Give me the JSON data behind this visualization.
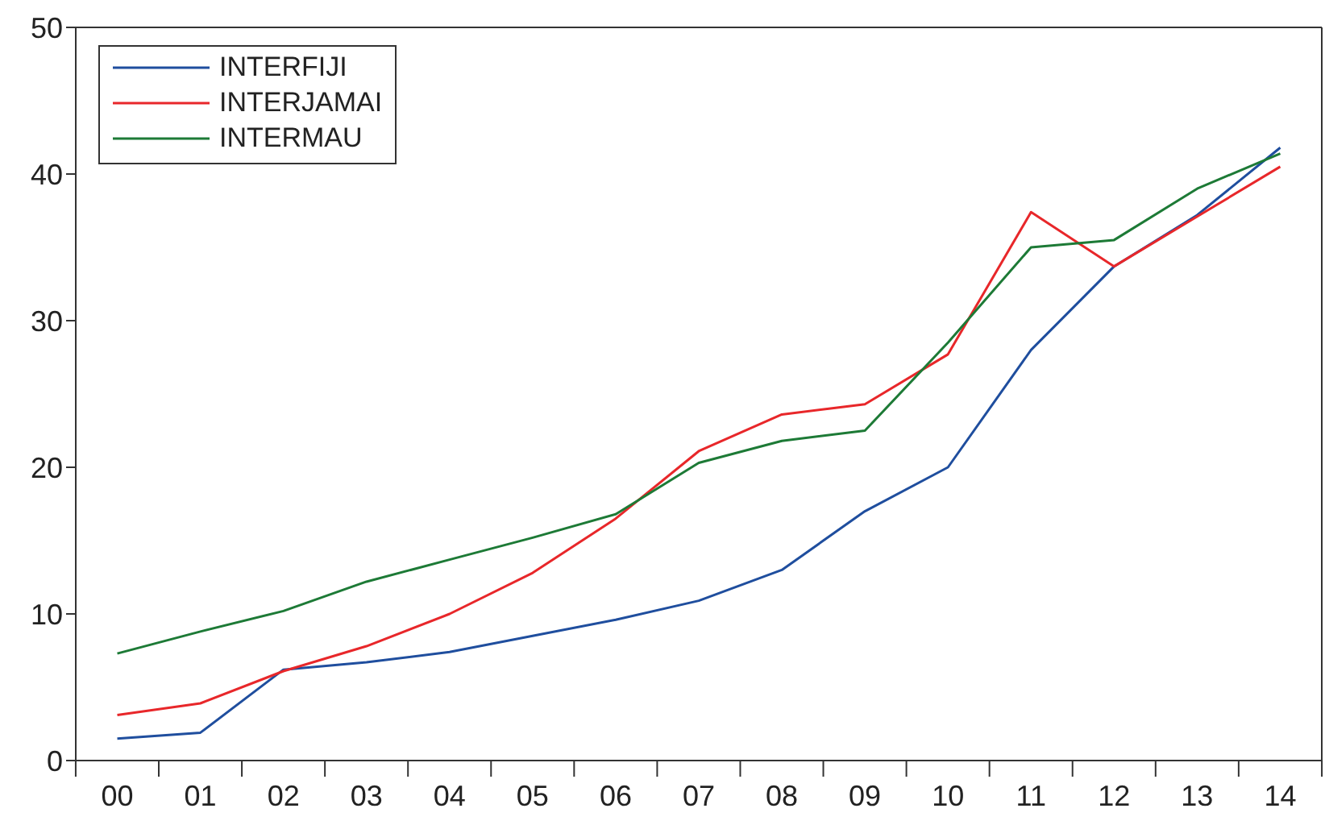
{
  "chart_data": {
    "type": "line",
    "categories": [
      "00",
      "01",
      "02",
      "03",
      "04",
      "05",
      "06",
      "07",
      "08",
      "09",
      "10",
      "11",
      "12",
      "13",
      "14"
    ],
    "series": [
      {
        "name": "INTERFIJI",
        "color": "#1f4e9e",
        "values": [
          1.5,
          1.9,
          6.2,
          6.7,
          7.4,
          8.5,
          9.6,
          10.9,
          13.0,
          17.0,
          20.0,
          28.0,
          33.7,
          37.2,
          41.8
        ]
      },
      {
        "name": "INTERJAMAI",
        "color": "#e8272a",
        "values": [
          3.1,
          3.9,
          6.1,
          7.8,
          10.0,
          12.8,
          16.5,
          21.1,
          23.6,
          24.3,
          27.7,
          37.4,
          33.7,
          37.1,
          40.5
        ]
      },
      {
        "name": "INTERMAU",
        "color": "#1d7a36",
        "values": [
          7.3,
          8.8,
          10.2,
          12.2,
          13.7,
          15.2,
          16.8,
          20.3,
          21.8,
          22.5,
          28.5,
          35.0,
          35.5,
          39.0,
          41.4
        ]
      }
    ],
    "ylim": [
      0,
      50
    ],
    "yticks": [
      0,
      10,
      20,
      30,
      40,
      50
    ],
    "legend": "top left",
    "marker": "none",
    "line_style": "solid"
  }
}
